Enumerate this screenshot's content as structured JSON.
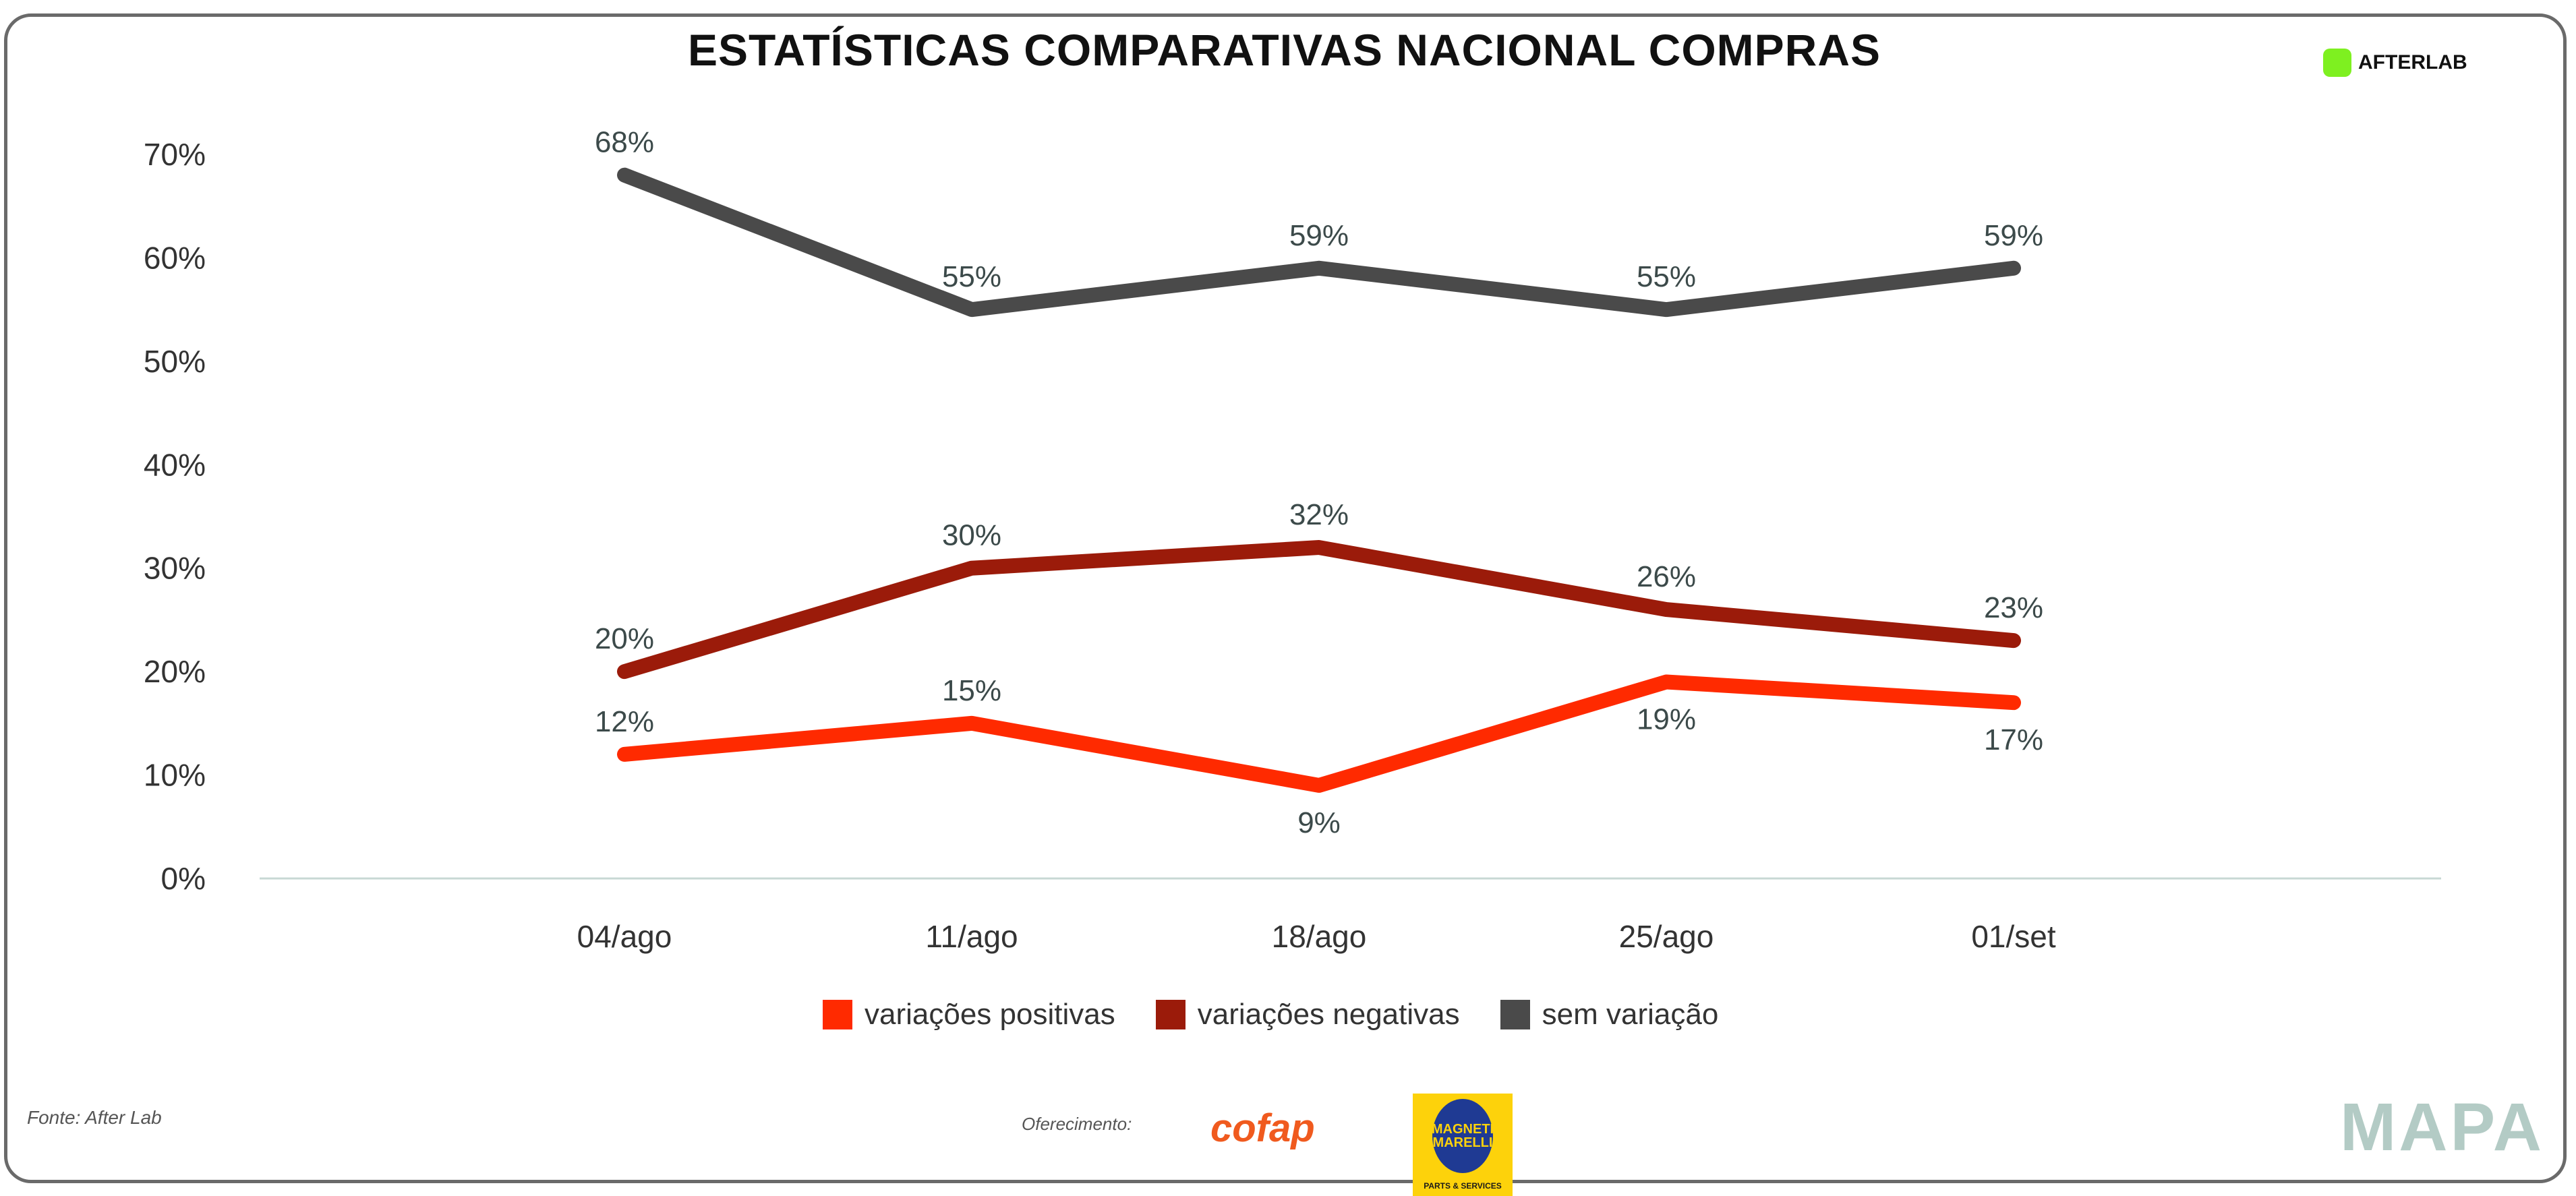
{
  "header": {
    "title": "ESTATÍSTICAS COMPARATIVAS NACIONAL COMPRAS",
    "brand": "AFTERLAB"
  },
  "chart_data": {
    "type": "line",
    "title": "ESTATÍSTICAS COMPARATIVAS NACIONAL COMPRAS",
    "categories": [
      "04/ago",
      "11/ago",
      "18/ago",
      "25/ago",
      "01/set"
    ],
    "yticks": [
      "0%",
      "10%",
      "20%",
      "30%",
      "40%",
      "50%",
      "60%",
      "70%"
    ],
    "ylim": [
      0,
      70
    ],
    "grid": false,
    "legend_position": "bottom",
    "series": [
      {
        "name": "variações positivas",
        "color": "#ff2a00",
        "values": [
          12,
          15,
          9,
          19,
          17
        ],
        "labels": [
          "12%",
          "15%",
          "9%",
          "19%",
          "17%"
        ]
      },
      {
        "name": "variações negativas",
        "color": "#9b1b0a",
        "values": [
          20,
          30,
          32,
          26,
          23
        ],
        "labels": [
          "20%",
          "30%",
          "32%",
          "26%",
          "23%"
        ]
      },
      {
        "name": "sem variação",
        "color": "#4a4a4a",
        "values": [
          68,
          55,
          59,
          55,
          59
        ],
        "labels": [
          "68%",
          "55%",
          "59%",
          "55%",
          "59%"
        ]
      }
    ]
  },
  "footer": {
    "source": "Fonte: After Lab",
    "sponsor_label": "Oferecimento:",
    "sponsor1": "cofap",
    "sponsor2_top": "MAGNETI MARELLI",
    "sponsor2_bottom": "PARTS & SERVICES",
    "mapa": "MAPA"
  }
}
